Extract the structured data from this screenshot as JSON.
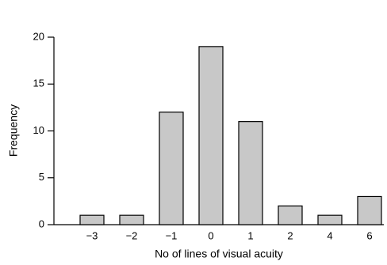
{
  "chart_data": {
    "type": "bar",
    "categories": [
      "−3",
      "−2",
      "−1",
      "0",
      "1",
      "2",
      "4",
      "6"
    ],
    "values": [
      1,
      1,
      12,
      19,
      11,
      2,
      1,
      3
    ],
    "color": "#c8c8c8",
    "x_label": "No of lines of visual acuity",
    "y_label": "Frequency",
    "ylim": [
      0,
      20
    ],
    "yticks": [
      0,
      5,
      10,
      15,
      20
    ]
  }
}
